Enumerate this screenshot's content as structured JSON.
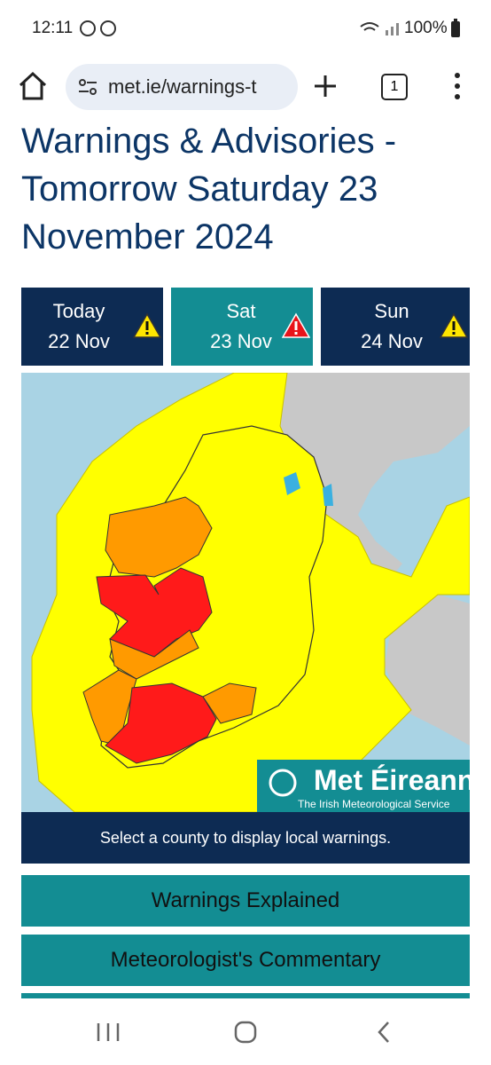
{
  "status_bar": {
    "time": "12:11",
    "battery": "100%"
  },
  "browser": {
    "url": "met.ie/warnings-t",
    "tab_count": "1"
  },
  "page": {
    "title": "Warnings & Advisories - Tomorrow Saturday 23 November 2024",
    "day_tabs": [
      {
        "day": "Today",
        "date": "22 Nov"
      },
      {
        "day": "Sat",
        "date": "23 Nov"
      },
      {
        "day": "Sun",
        "date": "24 Nov"
      }
    ],
    "logo": {
      "name": "Met Éireann",
      "tagline": "The Irish Meteorological Service"
    },
    "map_caption": "Select a county to display local warnings.",
    "buttons": [
      "Warnings Explained",
      "Meteorologist's Commentary"
    ]
  }
}
